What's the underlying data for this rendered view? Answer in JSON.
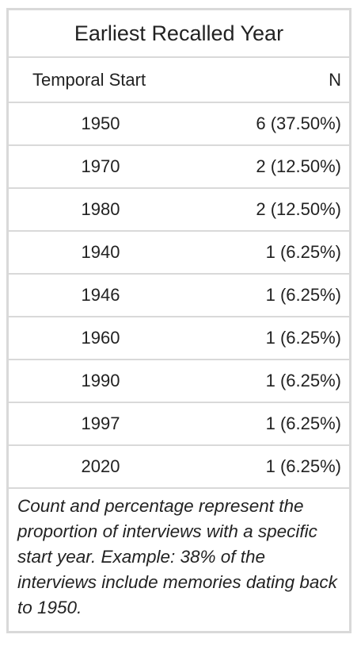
{
  "table": {
    "title": "Earliest Recalled Year",
    "columns": {
      "year": "Temporal Start",
      "n": "N"
    },
    "rows": [
      {
        "year": "1950",
        "n": "6 (37.50%)"
      },
      {
        "year": "1970",
        "n": "2 (12.50%)"
      },
      {
        "year": "1980",
        "n": "2 (12.50%)"
      },
      {
        "year": "1940",
        "n": "1 (6.25%)"
      },
      {
        "year": "1946",
        "n": "1 (6.25%)"
      },
      {
        "year": "1960",
        "n": "1 (6.25%)"
      },
      {
        "year": "1990",
        "n": "1 (6.25%)"
      },
      {
        "year": "1997",
        "n": "1 (6.25%)"
      },
      {
        "year": "2020",
        "n": "1 (6.25%)"
      }
    ],
    "footnote": "Count and percentage represent the proportion of interviews with a specific start year. Example: 38% of the interviews include memories dating back to 1950."
  },
  "colors": {
    "border": "#d9d9d9",
    "text": "#222222",
    "background": "#ffffff"
  }
}
